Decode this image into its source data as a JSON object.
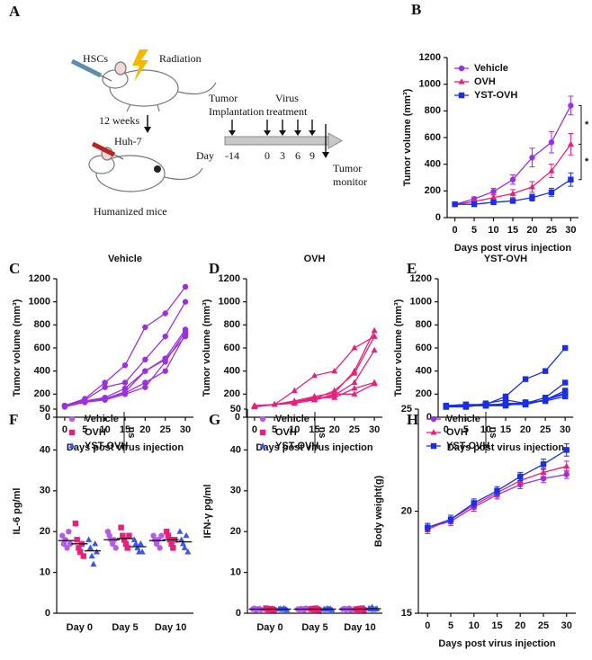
{
  "diagram": {
    "panel": "A",
    "hsc": "HSCs",
    "radiation": "Radiation",
    "weeks": "12 weeks",
    "cells": "Huh-7",
    "mice": "Humanized mice",
    "implantation": [
      "Tumor",
      "Implantation"
    ],
    "treatment": [
      "Virus",
      "treatment"
    ],
    "monitor": [
      "Tumor",
      "monitor"
    ],
    "day_label": "Day",
    "days": [
      "-14",
      "0",
      "3",
      "6",
      "9"
    ]
  },
  "chart_data": [
    {
      "type": "line",
      "panel": "B",
      "xlabel": "Days post virus injection",
      "ylabel": "Tumor volume (mm³)",
      "x": [
        0,
        5,
        10,
        15,
        20,
        25,
        30
      ],
      "xlim": [
        -2,
        32
      ],
      "xticks": [
        0,
        5,
        10,
        15,
        20,
        25,
        30
      ],
      "ylim": [
        0,
        1200
      ],
      "yticks": [
        0,
        200,
        400,
        600,
        800,
        1000,
        1200
      ],
      "legend": "upper left",
      "annotations": [
        "*",
        "*"
      ],
      "series": [
        {
          "name": "Vehicle",
          "color": "#9b30e0",
          "marker": "circle",
          "values": [
            100,
            140,
            195,
            285,
            450,
            565,
            840
          ],
          "errors": [
            10,
            15,
            25,
            35,
            70,
            80,
            70
          ]
        },
        {
          "name": "OVH",
          "color": "#e8207a",
          "marker": "triangle",
          "values": [
            100,
            120,
            150,
            180,
            230,
            350,
            550
          ],
          "errors": [
            10,
            15,
            20,
            30,
            40,
            50,
            80
          ]
        },
        {
          "name": "YST-OVH",
          "color": "#1a2ee6",
          "marker": "square",
          "values": [
            100,
            100,
            115,
            125,
            150,
            190,
            285
          ],
          "errors": [
            10,
            10,
            15,
            15,
            25,
            30,
            50
          ]
        }
      ]
    },
    {
      "type": "line",
      "panel": "C",
      "title": "Vehicle",
      "xlabel": "Days post virus injection",
      "ylabel": "Tumor volume (mm³)",
      "x": [
        0,
        5,
        10,
        15,
        20,
        25,
        30
      ],
      "xlim": [
        -2,
        32
      ],
      "xticks": [
        0,
        5,
        10,
        15,
        20,
        25,
        30
      ],
      "ylim": [
        0,
        1200
      ],
      "yticks": [
        0,
        200,
        400,
        600,
        800,
        1000,
        1200
      ],
      "series": [
        {
          "color": "#9b30e0",
          "marker": "circle",
          "values": [
            100,
            160,
            300,
            450,
            780,
            900,
            1130
          ]
        },
        {
          "color": "#9b30e0",
          "marker": "circle",
          "values": [
            100,
            150,
            260,
            300,
            500,
            700,
            1000
          ]
        },
        {
          "color": "#9b30e0",
          "marker": "circle",
          "values": [
            100,
            140,
            170,
            250,
            400,
            510,
            760
          ]
        },
        {
          "color": "#9b30e0",
          "marker": "circle",
          "values": [
            90,
            130,
            160,
            220,
            400,
            500,
            700
          ]
        },
        {
          "color": "#9b30e0",
          "marker": "circle",
          "values": [
            100,
            140,
            160,
            210,
            300,
            400,
            720
          ]
        },
        {
          "color": "#9b30e0",
          "marker": "circle",
          "values": [
            100,
            130,
            150,
            200,
            260,
            480,
            740
          ]
        }
      ]
    },
    {
      "type": "line",
      "panel": "D",
      "title": "OVH",
      "xlabel": "Days post virus injection",
      "ylabel": "Tumor volume (mm³)",
      "x": [
        0,
        5,
        10,
        15,
        20,
        25,
        30
      ],
      "xlim": [
        -2,
        32
      ],
      "xticks": [
        0,
        5,
        10,
        15,
        20,
        25,
        30
      ],
      "ylim": [
        0,
        1200
      ],
      "yticks": [
        0,
        200,
        400,
        600,
        800,
        1000,
        1200
      ],
      "series": [
        {
          "color": "#e8207a",
          "marker": "triangle",
          "values": [
            100,
            110,
            230,
            360,
            400,
            600,
            700
          ]
        },
        {
          "color": "#e8207a",
          "marker": "triangle",
          "values": [
            90,
            110,
            140,
            180,
            210,
            400,
            750
          ]
        },
        {
          "color": "#e8207a",
          "marker": "triangle",
          "values": [
            100,
            110,
            130,
            160,
            230,
            380,
            700
          ]
        },
        {
          "color": "#e8207a",
          "marker": "triangle",
          "values": [
            100,
            110,
            120,
            150,
            190,
            300,
            580
          ]
        },
        {
          "color": "#e8207a",
          "marker": "triangle",
          "values": [
            100,
            110,
            130,
            170,
            170,
            250,
            300
          ]
        },
        {
          "color": "#e8207a",
          "marker": "triangle",
          "values": [
            90,
            110,
            140,
            150,
            200,
            200,
            290
          ]
        }
      ]
    },
    {
      "type": "line",
      "panel": "E",
      "title": "YST-OVH",
      "xlabel": "Days post virus injection",
      "ylabel": "Tumor volume (mm³)",
      "x": [
        0,
        5,
        10,
        15,
        20,
        25,
        30
      ],
      "xlim": [
        -2,
        32
      ],
      "xticks": [
        0,
        5,
        10,
        15,
        20,
        25,
        30
      ],
      "ylim": [
        0,
        1200
      ],
      "yticks": [
        0,
        200,
        400,
        600,
        800,
        1000,
        1200
      ],
      "series": [
        {
          "color": "#1a2ee6",
          "marker": "square",
          "values": [
            100,
            110,
            110,
            180,
            330,
            400,
            600
          ]
        },
        {
          "color": "#1a2ee6",
          "marker": "square",
          "values": [
            100,
            90,
            120,
            150,
            120,
            170,
            300
          ]
        },
        {
          "color": "#1a2ee6",
          "marker": "square",
          "values": [
            100,
            100,
            100,
            120,
            120,
            150,
            230
          ]
        },
        {
          "color": "#1a2ee6",
          "marker": "square",
          "values": [
            90,
            90,
            110,
            110,
            110,
            150,
            210
          ]
        },
        {
          "color": "#1a2ee6",
          "marker": "square",
          "values": [
            100,
            110,
            100,
            100,
            130,
            140,
            180
          ]
        },
        {
          "color": "#1a2ee6",
          "marker": "square",
          "values": [
            90,
            100,
            110,
            110,
            110,
            150,
            200
          ]
        }
      ]
    },
    {
      "type": "strip",
      "panel": "F",
      "ylabel": "IL-6 pg/ml",
      "categories": [
        "Day 0",
        "Day 5",
        "Day 10"
      ],
      "ylim": [
        0,
        50
      ],
      "yticks": [
        0,
        10,
        20,
        30,
        40,
        50
      ],
      "legend": "upper left",
      "annotations": [
        "ns"
      ],
      "series": [
        {
          "name": "Vehicle",
          "color": "#b45ce8",
          "marker": "circle",
          "values": [
            [
              19,
              17,
              18,
              16,
              20,
              17
            ],
            [
              20,
              19,
              18,
              17,
              18,
              16
            ],
            [
              19,
              18,
              17,
              18,
              16,
              19
            ]
          ],
          "means": [
            17.8,
            18,
            17.8
          ]
        },
        {
          "name": "OVH",
          "color": "#e8207a",
          "marker": "square",
          "values": [
            [
              22,
              18,
              16,
              15,
              17,
              14
            ],
            [
              21,
              19,
              18,
              17,
              16,
              19
            ],
            [
              20,
              19,
              18,
              17,
              16,
              18
            ]
          ],
          "means": [
            17,
            18.3,
            18
          ]
        },
        {
          "name": "YST-OVH",
          "color": "#3a55f0",
          "marker": "triangle",
          "values": [
            [
              18,
              16,
              14,
              12,
              17,
              15
            ],
            [
              18,
              17,
              16,
              15,
              17,
              15
            ],
            [
              20,
              18,
              17,
              16,
              19,
              15
            ]
          ],
          "means": [
            15.3,
            16.3,
            17.5
          ]
        }
      ]
    },
    {
      "type": "strip",
      "panel": "G",
      "ylabel": "IFN-γ pg/ml",
      "categories": [
        "Day 0",
        "Day 5",
        "Day 10"
      ],
      "ylim": [
        0,
        50
      ],
      "yticks": [
        0,
        10,
        20,
        30,
        40,
        50
      ],
      "legend": "upper left",
      "annotations": [
        "ns"
      ],
      "series": [
        {
          "name": "Vehicle",
          "color": "#b45ce8",
          "marker": "circle",
          "values": [
            [
              1,
              1.2,
              0.8,
              1,
              1.1,
              0.9
            ],
            [
              1,
              0.9,
              1.1,
              1,
              0.8,
              1.2
            ],
            [
              1,
              1.1,
              0.9,
              1,
              1.2,
              0.8
            ]
          ],
          "means": [
            1,
            1,
            1
          ]
        },
        {
          "name": "OVH",
          "color": "#e8207a",
          "marker": "square",
          "values": [
            [
              1.2,
              1,
              0.9,
              1.1,
              1,
              0.8
            ],
            [
              1,
              1.1,
              0.9,
              1.2,
              1,
              0.8
            ],
            [
              1,
              0.9,
              1.1,
              1,
              1.2,
              0.8
            ]
          ],
          "means": [
            1,
            1,
            1
          ]
        },
        {
          "name": "YST-OVH",
          "color": "#3a55f0",
          "marker": "triangle",
          "values": [
            [
              1,
              1.1,
              0.9,
              1.2,
              1,
              0.8
            ],
            [
              1,
              0.9,
              1.2,
              1,
              1.1,
              0.8
            ],
            [
              1.2,
              1,
              1.5,
              0.9,
              1,
              1.1
            ]
          ],
          "means": [
            1,
            1,
            1.1
          ]
        }
      ]
    },
    {
      "type": "line",
      "panel": "H",
      "xlabel": "Days post virus injection",
      "ylabel": "Body weight(g)",
      "x": [
        0,
        5,
        10,
        15,
        20,
        25,
        30
      ],
      "xlim": [
        -2,
        32
      ],
      "xticks": [
        0,
        5,
        10,
        15,
        20,
        25,
        30
      ],
      "ylim": [
        15,
        25
      ],
      "yticks": [
        15,
        20,
        25
      ],
      "legend": "upper left",
      "annotations": [
        "ns"
      ],
      "series": [
        {
          "name": "Vehicle",
          "color": "#9b30e0",
          "marker": "circle",
          "values": [
            19.2,
            19.5,
            20.2,
            20.8,
            21.3,
            21.6,
            21.8
          ],
          "errors": [
            0.2,
            0.2,
            0.2,
            0.2,
            0.2,
            0.2,
            0.2
          ]
        },
        {
          "name": "OVH",
          "color": "#e8207a",
          "marker": "triangle",
          "values": [
            19.1,
            19.6,
            20.3,
            20.9,
            21.5,
            21.9,
            22.2
          ],
          "errors": [
            0.2,
            0.2,
            0.2,
            0.2,
            0.2,
            0.2,
            0.25
          ]
        },
        {
          "name": "YST-OVH",
          "color": "#1a2ee6",
          "marker": "square",
          "values": [
            19.2,
            19.6,
            20.4,
            21.0,
            21.7,
            22.3,
            23.0
          ],
          "errors": [
            0.2,
            0.2,
            0.2,
            0.2,
            0.2,
            0.25,
            0.3
          ]
        }
      ]
    }
  ]
}
